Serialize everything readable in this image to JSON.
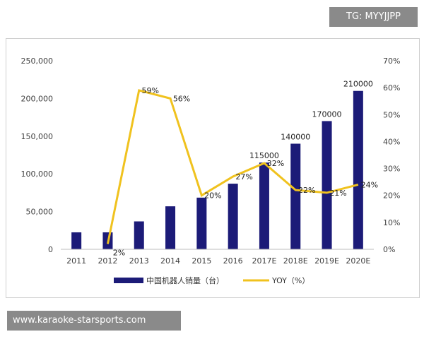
{
  "watermark_top": "TG: MYYJJPP",
  "watermark_bottom": "www.karaoke-starsports.com",
  "colors": {
    "bar": "#1c1b78",
    "line": "#f0c21e",
    "axis_text": "#404040"
  },
  "chart_data": {
    "type": "bar",
    "categories": [
      "2011",
      "2012",
      "2013",
      "2014",
      "2015",
      "2016",
      "2017E",
      "2018E",
      "2019E",
      "2020E"
    ],
    "series": [
      {
        "name": "中国机器人销量（台）",
        "type": "bar",
        "axis": "left",
        "values": [
          22500,
          22500,
          37000,
          57000,
          68500,
          87000,
          115000,
          140000,
          170000,
          210000
        ],
        "labels": [
          "",
          "",
          "",
          "",
          "",
          "",
          "115000",
          "140000",
          "170000",
          "210000"
        ]
      },
      {
        "name": "YOY（%）",
        "type": "line",
        "axis": "right",
        "values": [
          null,
          2,
          59,
          56,
          20,
          27,
          32,
          22,
          21,
          24
        ],
        "labels": [
          "",
          "2%",
          "59%",
          "56%",
          "20%",
          "27%",
          "32%",
          "22%",
          "21%",
          "24%"
        ]
      }
    ],
    "ylim_left": [
      0,
      250000
    ],
    "yticks_left": [
      "0",
      "50,000",
      "100,000",
      "150,000",
      "200,000",
      "250,000"
    ],
    "ylim_right": [
      0,
      70
    ],
    "yticks_right": [
      "0%",
      "10%",
      "20%",
      "30%",
      "40%",
      "50%",
      "60%",
      "70%"
    ],
    "grid": false,
    "legend_position": "bottom"
  }
}
